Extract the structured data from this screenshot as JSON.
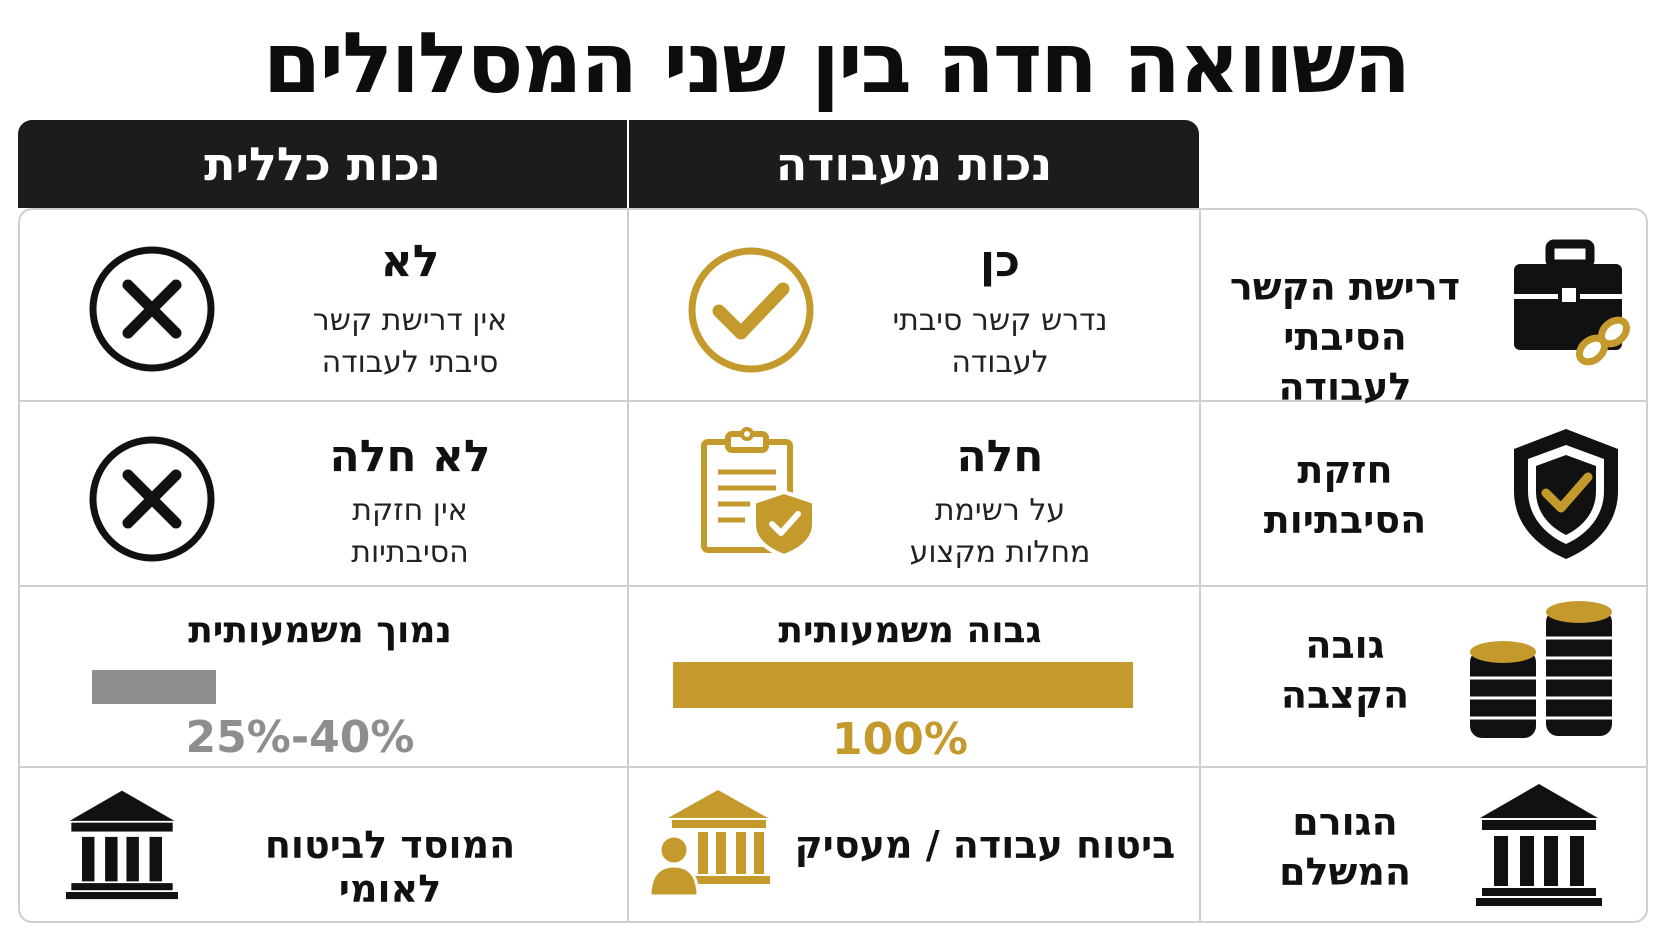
{
  "title": "השוואה חדה בין שני המסלולים",
  "headers": {
    "work": "נכות מעבודה",
    "general": "נכות כללית"
  },
  "rows": [
    {
      "label_line1": "דרישת הקשר",
      "label_line2": "הסיבתי לעבודה",
      "icon": "briefcase-chain-icon",
      "work_main": "כן",
      "work_sub_line1": "נדרש קשר סיבתי",
      "work_sub_line2": "לעבודה",
      "work_icon": "check-circle-icon",
      "general_main": "לא",
      "general_sub_line1": "אין דרישת קשר",
      "general_sub_line2": "סיבתי לעבודה",
      "general_icon": "x-circle-icon"
    },
    {
      "label_line1": "חזקת",
      "label_line2": "הסיבתיות",
      "icon": "shield-check-icon",
      "work_main": "חלה",
      "work_sub_line1": "על רשימת",
      "work_sub_line2": "מחלות מקצוע",
      "work_icon": "clipboard-shield-icon",
      "general_main": "לא חלה",
      "general_sub_line1": "אין חזקת",
      "general_sub_line2": "הסיבתיות",
      "general_icon": "x-circle-icon"
    },
    {
      "label_line1": "גובה",
      "label_line2": "הקצבה",
      "icon": "coin-stacks-icon",
      "work_main": "גבוה משמעותית",
      "work_value": "100%",
      "work_fill": 1.0,
      "general_main": "נמוך משמעותית",
      "general_value": "25%-40%",
      "general_fill": 0.27
    },
    {
      "label_line1": "הגורם",
      "label_line2": "המשלם",
      "icon": "bank-icon",
      "work_main": "ביטוח עבודה / מעסיק",
      "work_icon": "bank-person-icon",
      "general_main": "המוסד לביטוח לאומי",
      "general_icon": "bank-icon"
    }
  ],
  "colors": {
    "gold": "#c49a2c",
    "dark": "#1c1c1d",
    "grey": "#8e8e90",
    "border": "#cfcfcf"
  }
}
